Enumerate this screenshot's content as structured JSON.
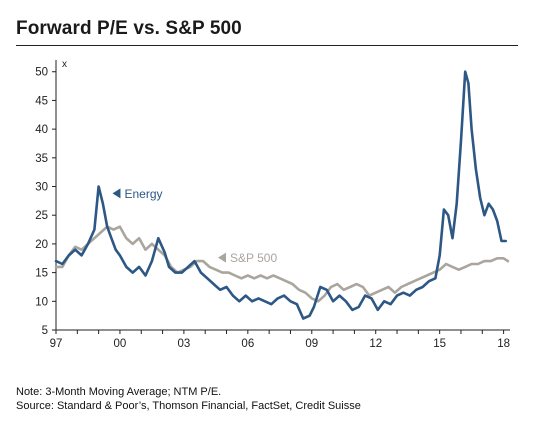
{
  "chart_data": {
    "type": "line",
    "title": "Forward P/E vs. S&P 500",
    "y_unit_label": "x",
    "ylim": [
      5,
      51
    ],
    "xlim": [
      1997,
      2018.3
    ],
    "y_ticks": [
      5,
      10,
      15,
      20,
      25,
      30,
      35,
      40,
      45,
      50
    ],
    "x_ticks": [
      {
        "value": 1997,
        "label": "97"
      },
      {
        "value": 2000,
        "label": "00"
      },
      {
        "value": 2003,
        "label": "03"
      },
      {
        "value": 2006,
        "label": "06"
      },
      {
        "value": 2009,
        "label": "09"
      },
      {
        "value": 2012,
        "label": "12"
      },
      {
        "value": 2015,
        "label": "15"
      },
      {
        "value": 2018,
        "label": "18"
      }
    ],
    "grid": false,
    "series": [
      {
        "name": "Energy",
        "color": "#2d5785",
        "x": [
          1997.0,
          1997.3,
          1997.6,
          1997.9,
          1998.2,
          1998.5,
          1998.8,
          1999.0,
          1999.2,
          1999.4,
          1999.6,
          1999.8,
          2000.0,
          2000.3,
          2000.6,
          2000.9,
          2001.2,
          2001.5,
          2001.8,
          2002.1,
          2002.3,
          2002.6,
          2002.9,
          2003.2,
          2003.5,
          2003.8,
          2004.1,
          2004.4,
          2004.7,
          2005.0,
          2005.3,
          2005.6,
          2005.9,
          2006.2,
          2006.5,
          2006.8,
          2007.1,
          2007.4,
          2007.7,
          2008.0,
          2008.3,
          2008.6,
          2008.9,
          2009.1,
          2009.4,
          2009.7,
          2010.0,
          2010.3,
          2010.6,
          2010.9,
          2011.2,
          2011.5,
          2011.8,
          2012.1,
          2012.4,
          2012.7,
          2013.0,
          2013.3,
          2013.6,
          2013.9,
          2014.2,
          2014.5,
          2014.8,
          2015.0,
          2015.2,
          2015.4,
          2015.6,
          2015.8,
          2016.0,
          2016.2,
          2016.35,
          2016.5,
          2016.7,
          2016.9,
          2017.1,
          2017.3,
          2017.5,
          2017.7,
          2017.9,
          2018.1
        ],
        "values": [
          17,
          16.5,
          18,
          19,
          18,
          20,
          22.5,
          30,
          27,
          23,
          21,
          19,
          18,
          16,
          15,
          16,
          14.5,
          17,
          21,
          18.5,
          16,
          15,
          15,
          16,
          17,
          15,
          14,
          13,
          12,
          12.5,
          11,
          10,
          11,
          10,
          10.5,
          10,
          9.5,
          10.5,
          11,
          10,
          9.5,
          7,
          7.5,
          9,
          12.5,
          12,
          10,
          11,
          10,
          8.5,
          9,
          11,
          10.5,
          8.5,
          10,
          9.5,
          11,
          11.5,
          11,
          12,
          12.5,
          13.5,
          14,
          18,
          26,
          25,
          21,
          27,
          38,
          50,
          48,
          40,
          33,
          28,
          25,
          27,
          26,
          24,
          20.5,
          20.5
        ]
      },
      {
        "name": "S&P 500",
        "color": "#aaa59d",
        "x": [
          1997.0,
          1997.3,
          1997.6,
          1997.9,
          1998.2,
          1998.5,
          1998.8,
          1999.1,
          1999.4,
          1999.7,
          2000.0,
          2000.3,
          2000.6,
          2000.9,
          2001.2,
          2001.5,
          2001.8,
          2002.1,
          2002.4,
          2002.7,
          2003.0,
          2003.3,
          2003.6,
          2003.9,
          2004.2,
          2004.5,
          2004.8,
          2005.1,
          2005.4,
          2005.7,
          2006.0,
          2006.3,
          2006.6,
          2006.9,
          2007.2,
          2007.5,
          2007.8,
          2008.1,
          2008.4,
          2008.7,
          2009.0,
          2009.3,
          2009.6,
          2009.9,
          2010.2,
          2010.5,
          2010.8,
          2011.1,
          2011.4,
          2011.7,
          2012.0,
          2012.3,
          2012.6,
          2012.9,
          2013.2,
          2013.5,
          2013.8,
          2014.1,
          2014.4,
          2014.7,
          2015.0,
          2015.3,
          2015.6,
          2015.9,
          2016.2,
          2016.5,
          2016.8,
          2017.1,
          2017.4,
          2017.7,
          2018.0,
          2018.2
        ],
        "values": [
          16,
          16,
          18,
          19.5,
          19,
          20,
          21,
          22,
          23,
          22.5,
          23,
          21,
          20,
          21,
          19,
          20,
          19,
          18,
          16,
          15,
          15.5,
          16,
          17,
          17,
          16,
          15.5,
          15,
          15,
          14.5,
          14,
          14.5,
          14,
          14.5,
          14,
          14.5,
          14,
          13.5,
          13,
          12,
          11.5,
          10.5,
          10,
          11,
          12.5,
          13,
          12,
          12.5,
          13,
          12.5,
          11,
          11.5,
          12,
          12.5,
          11.5,
          12.5,
          13,
          13.5,
          14,
          14.5,
          15,
          15.5,
          16.5,
          16,
          15.5,
          16,
          16.5,
          16.5,
          17,
          17,
          17.5,
          17.5,
          17
        ]
      }
    ],
    "annotations": [
      {
        "text": "Energy",
        "series": "Energy"
      },
      {
        "text": "S&P 500",
        "series": "S&P 500"
      }
    ]
  },
  "notes": {
    "line1": "Note: 3-Month Moving Average; NTM P/E.",
    "line2": "Source: Standard & Poor’s, Thomson Financial, FactSet, Credit Suisse"
  }
}
